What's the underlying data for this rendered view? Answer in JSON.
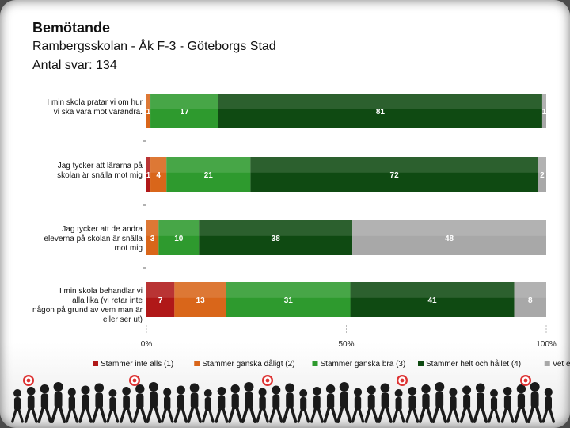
{
  "header": {
    "title": "Bemötande",
    "subtitle": "Rambergsskolan - Åk F-3 - Göteborgs Stad",
    "responses": "Antal svar: 134"
  },
  "chart_data": {
    "type": "bar",
    "orientation": "horizontal",
    "stacked": true,
    "percent_axis": true,
    "categories": [
      "I min skola pratar vi om hur vi ska vara mot varandra.",
      "Jag tycker att lärarna på skolan är snälla mot mig",
      "Jag tycker att de andra eleverna på skolan är snälla mot mig",
      "I min skola behandlar vi alla lika (vi retar inte någon på grund av vem man är eller ser ut)"
    ],
    "series": [
      {
        "name": "Stammer inte alls (1)",
        "color": "#b01818",
        "values": [
          0,
          1,
          0,
          7
        ],
        "labels": [
          "",
          "1",
          "",
          "7"
        ]
      },
      {
        "name": "Stammer ganska dåligt (2)",
        "color": "#d9661a",
        "values": [
          1,
          4,
          3,
          13
        ],
        "labels": [
          "1",
          "4",
          "3",
          "13"
        ]
      },
      {
        "name": "Stammer ganska bra (3)",
        "color": "#2e9a2e",
        "values": [
          17,
          21,
          10,
          31
        ],
        "labels": [
          "17",
          "21",
          "10",
          "31"
        ]
      },
      {
        "name": "Stammer helt och hållet (4)",
        "color": "#0f4a12",
        "values": [
          81,
          72,
          38,
          41
        ],
        "labels": [
          "81",
          "72",
          "38",
          "41"
        ]
      },
      {
        "name": "Vet ej",
        "color": "#a8a8a8",
        "values": [
          1,
          2,
          48,
          8
        ],
        "labels": [
          "1",
          "2",
          "48",
          "8"
        ]
      }
    ],
    "xaxis": {
      "ticks": [
        "0%",
        "50%",
        "100%"
      ],
      "range": [
        0,
        100
      ]
    },
    "legend": {
      "position": "bottom"
    }
  }
}
